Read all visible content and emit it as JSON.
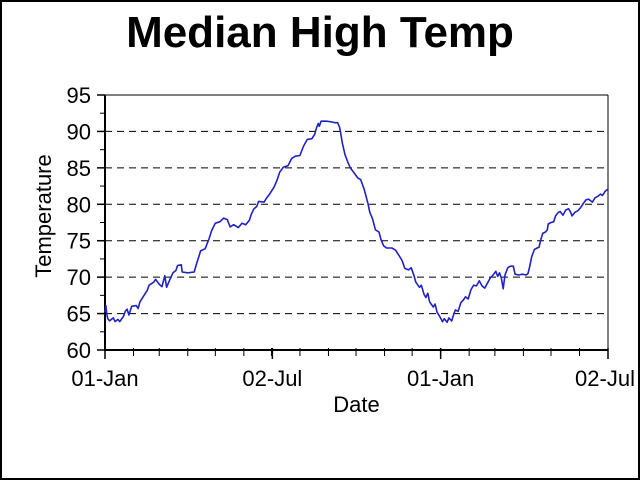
{
  "title": "Median High Temp",
  "colors": {
    "background": "#ffffff",
    "border": "#000000",
    "axis": "#000000",
    "gridline": "#000000",
    "line": "#2121c8"
  },
  "chart_data": {
    "type": "line",
    "title": "Median High Temp",
    "xlabel": "Date",
    "ylabel": "Temperature",
    "ylim": [
      60,
      95
    ],
    "y_tick_values": [
      60,
      65,
      70,
      75,
      80,
      85,
      90,
      95
    ],
    "y_minor_tick_values": [
      62.5,
      67.5,
      72.5,
      77.5,
      82.5,
      87.5,
      92.5
    ],
    "grid_values": [
      65,
      70,
      75,
      80,
      85,
      90
    ],
    "grid_style": "dashed",
    "legend": "none",
    "xlim_days": [
      0,
      547
    ],
    "x_tick_labels": [
      {
        "label": "01-Jan",
        "day": 0
      },
      {
        "label": "02-Jul",
        "day": 182
      },
      {
        "label": "01-Jan",
        "day": 365
      },
      {
        "label": "02-Jul",
        "day": 547
      }
    ],
    "x_minor_tick_days": [
      0,
      31,
      59,
      90,
      120,
      151,
      181,
      212,
      243,
      273,
      304,
      334,
      365,
      396,
      424,
      455,
      485,
      516,
      547
    ],
    "series": [
      {
        "name": "Median High Temp",
        "color": "#2121c8",
        "points": [
          [
            0,
            65.3
          ],
          [
            1,
            66.1
          ],
          [
            2,
            64.9
          ],
          [
            3,
            64.3
          ],
          [
            5,
            64.0
          ],
          [
            9,
            64.4
          ],
          [
            11,
            63.9
          ],
          [
            14,
            64.2
          ],
          [
            16,
            63.9
          ],
          [
            20,
            64.6
          ],
          [
            22,
            65.3
          ],
          [
            24,
            65.6
          ],
          [
            26,
            64.8
          ],
          [
            29,
            66.0
          ],
          [
            34,
            66.1
          ],
          [
            36,
            65.7
          ],
          [
            38,
            66.6
          ],
          [
            42,
            67.4
          ],
          [
            46,
            68.2
          ],
          [
            48,
            68.9
          ],
          [
            53,
            69.3
          ],
          [
            55,
            69.7
          ],
          [
            59,
            69.0
          ],
          [
            62,
            68.7
          ],
          [
            65,
            70.2
          ],
          [
            67,
            68.6
          ],
          [
            71,
            69.8
          ],
          [
            74,
            70.6
          ],
          [
            77,
            70.9
          ],
          [
            79,
            71.6
          ],
          [
            83,
            71.7
          ],
          [
            84,
            70.7
          ],
          [
            90,
            70.6
          ],
          [
            97,
            70.7
          ],
          [
            99,
            71.6
          ],
          [
            102,
            72.8
          ],
          [
            104,
            73.6
          ],
          [
            109,
            73.9
          ],
          [
            111,
            74.6
          ],
          [
            113,
            75.2
          ],
          [
            116,
            76.4
          ],
          [
            120,
            77.4
          ],
          [
            125,
            77.6
          ],
          [
            129,
            78.1
          ],
          [
            133,
            77.9
          ],
          [
            136,
            76.9
          ],
          [
            140,
            77.2
          ],
          [
            145,
            76.8
          ],
          [
            149,
            77.4
          ],
          [
            153,
            77.2
          ],
          [
            157,
            77.8
          ],
          [
            159,
            78.6
          ],
          [
            162,
            79.4
          ],
          [
            165,
            79.7
          ],
          [
            167,
            80.4
          ],
          [
            173,
            80.3
          ],
          [
            176,
            80.9
          ],
          [
            179,
            81.4
          ],
          [
            184,
            82.4
          ],
          [
            187,
            83.3
          ],
          [
            190,
            84.4
          ],
          [
            194,
            85.1
          ],
          [
            199,
            85.3
          ],
          [
            203,
            86.3
          ],
          [
            207,
            86.6
          ],
          [
            212,
            86.7
          ],
          [
            216,
            88.0
          ],
          [
            220,
            88.9
          ],
          [
            225,
            89.0
          ],
          [
            228,
            89.6
          ],
          [
            230,
            90.5
          ],
          [
            232,
            91.1
          ],
          [
            233,
            90.7
          ],
          [
            235,
            91.4
          ],
          [
            241,
            91.4
          ],
          [
            247,
            91.3
          ],
          [
            250,
            91.2
          ],
          [
            253,
            91.2
          ],
          [
            255,
            90.6
          ],
          [
            256,
            90.0
          ],
          [
            258,
            88.5
          ],
          [
            261,
            86.8
          ],
          [
            264,
            85.8
          ],
          [
            266,
            85.2
          ],
          [
            268,
            84.8
          ],
          [
            271,
            84.3
          ],
          [
            275,
            83.6
          ],
          [
            278,
            83.4
          ],
          [
            280,
            82.7
          ],
          [
            282,
            82.0
          ],
          [
            284,
            81.0
          ],
          [
            286,
            80.1
          ],
          [
            288,
            78.9
          ],
          [
            291,
            78.0
          ],
          [
            294,
            76.5
          ],
          [
            298,
            76.2
          ],
          [
            300,
            75.2
          ],
          [
            303,
            74.3
          ],
          [
            306,
            74.0
          ],
          [
            312,
            74.0
          ],
          [
            316,
            73.7
          ],
          [
            320,
            72.9
          ],
          [
            323,
            72.3
          ],
          [
            326,
            71.2
          ],
          [
            330,
            71.0
          ],
          [
            333,
            71.3
          ],
          [
            336,
            70.2
          ],
          [
            338,
            69.3
          ],
          [
            342,
            68.6
          ],
          [
            344,
            68.9
          ],
          [
            347,
            67.6
          ],
          [
            349,
            67.2
          ],
          [
            351,
            67.8
          ],
          [
            353,
            66.6
          ],
          [
            357,
            65.9
          ],
          [
            359,
            66.3
          ],
          [
            361,
            65.2
          ],
          [
            364,
            64.6
          ],
          [
            367,
            63.9
          ],
          [
            369,
            64.3
          ],
          [
            372,
            63.8
          ],
          [
            374,
            64.4
          ],
          [
            377,
            64.0
          ],
          [
            379,
            64.8
          ],
          [
            381,
            65.5
          ],
          [
            384,
            65.3
          ],
          [
            387,
            66.5
          ],
          [
            390,
            66.9
          ],
          [
            392,
            67.3
          ],
          [
            395,
            67.0
          ],
          [
            398,
            68.3
          ],
          [
            401,
            68.9
          ],
          [
            404,
            68.8
          ],
          [
            407,
            69.5
          ],
          [
            410,
            68.8
          ],
          [
            413,
            68.5
          ],
          [
            416,
            69.2
          ],
          [
            419,
            69.9
          ],
          [
            422,
            70.3
          ],
          [
            425,
            70.8
          ],
          [
            427,
            70.1
          ],
          [
            429,
            70.6
          ],
          [
            431,
            69.9
          ],
          [
            433,
            68.4
          ],
          [
            435,
            70.3
          ],
          [
            438,
            71.3
          ],
          [
            441,
            71.5
          ],
          [
            444,
            71.5
          ],
          [
            446,
            70.4
          ],
          [
            450,
            70.3
          ],
          [
            454,
            70.4
          ],
          [
            458,
            70.3
          ],
          [
            460,
            70.5
          ],
          [
            462,
            71.5
          ],
          [
            464,
            72.8
          ],
          [
            467,
            73.8
          ],
          [
            470,
            74.0
          ],
          [
            472,
            74.1
          ],
          [
            474,
            75.2
          ],
          [
            476,
            76.0
          ],
          [
            479,
            76.2
          ],
          [
            481,
            76.5
          ],
          [
            482,
            77.3
          ],
          [
            485,
            77.5
          ],
          [
            488,
            77.6
          ],
          [
            490,
            78.4
          ],
          [
            493,
            78.9
          ],
          [
            495,
            79.0
          ],
          [
            498,
            78.5
          ],
          [
            501,
            79.2
          ],
          [
            504,
            79.4
          ],
          [
            506,
            79.0
          ],
          [
            508,
            78.4
          ],
          [
            511,
            78.9
          ],
          [
            514,
            79.1
          ],
          [
            517,
            79.5
          ],
          [
            520,
            80.1
          ],
          [
            523,
            80.6
          ],
          [
            526,
            80.7
          ],
          [
            528,
            80.5
          ],
          [
            530,
            80.3
          ],
          [
            533,
            80.9
          ],
          [
            536,
            81.1
          ],
          [
            539,
            81.4
          ],
          [
            541,
            81.2
          ],
          [
            544,
            81.8
          ],
          [
            547,
            82.1
          ]
        ]
      }
    ]
  }
}
